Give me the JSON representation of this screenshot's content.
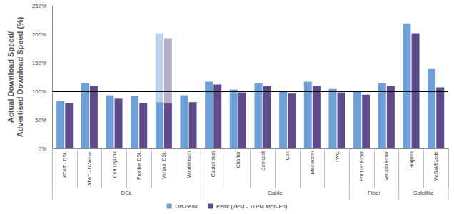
{
  "chart_data": {
    "type": "bar",
    "y_label": "Actual Download Speed/\nAdvertised Download Speed (%)",
    "categories": [
      "AT&T - DSL",
      "AT&T - U-Verse",
      "CenturyLink",
      "Frontier DSL",
      "Verizon DSL",
      "Windstream",
      "Cablevision",
      "Charter",
      "Comcast",
      "Cox",
      "Mediacom",
      "TWC",
      "Frontier Fiber",
      "Verizon Fiber",
      "Hughes",
      "ViaSat/Exede"
    ],
    "category_groups": [
      {
        "label": "DSL",
        "size": 6
      },
      {
        "label": "Cable",
        "size": 6
      },
      {
        "label": "Fiber",
        "size": 2
      },
      {
        "label": "Satellite",
        "size": 2
      }
    ],
    "series": [
      {
        "name": "Off-Peak",
        "color": "#6f9fd8",
        "values": [
          83,
          115,
          93,
          92,
          81,
          93,
          117,
          103,
          114,
          101,
          117,
          104,
          100,
          115,
          219,
          139
        ],
        "range_high": [
          null,
          null,
          null,
          null,
          202,
          null,
          null,
          null,
          null,
          null,
          null,
          null,
          null,
          null,
          null,
          null
        ]
      },
      {
        "name": "Peak (7PM - 11PM Mon-Fri)",
        "color": "#5f4b8b",
        "values": [
          80,
          110,
          87,
          80,
          79,
          81,
          112,
          98,
          109,
          96,
          110,
          98,
          94,
          110,
          202,
          107
        ],
        "range_high": [
          null,
          null,
          null,
          null,
          193,
          null,
          null,
          null,
          null,
          null,
          null,
          null,
          null,
          null,
          null,
          null
        ]
      }
    ],
    "ylim": [
      0,
      250
    ],
    "yticks": [
      {
        "value": 0,
        "label": "0%"
      },
      {
        "value": 50,
        "label": "50%"
      },
      {
        "value": 100,
        "label": "100%"
      },
      {
        "value": 150,
        "label": "150%"
      },
      {
        "value": 200,
        "label": "200%"
      },
      {
        "value": 250,
        "label": "250%"
      }
    ],
    "reference_y": 100,
    "grid": false,
    "legend": "bottom"
  }
}
